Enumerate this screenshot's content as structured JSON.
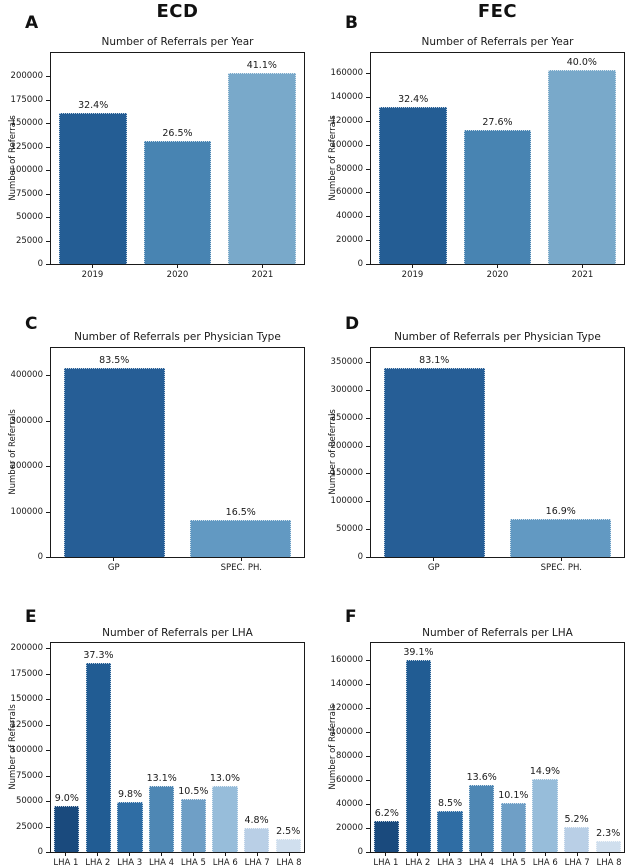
{
  "columns": [
    {
      "label": "ECD"
    },
    {
      "label": "FEC"
    }
  ],
  "chart_data": [
    {
      "panel": "A",
      "column": "ECD",
      "type": "bar",
      "title": "Number of Referrals per Year",
      "xlabel": "",
      "ylabel": "Number of Referrals",
      "categories": [
        "2019",
        "2020",
        "2021"
      ],
      "values": [
        161000,
        131500,
        204000
      ],
      "bar_labels": [
        "32.4%",
        "26.5%",
        "41.1%"
      ],
      "yticks": [
        0,
        25000,
        50000,
        75000,
        100000,
        125000,
        150000,
        175000,
        200000
      ],
      "ylim": [
        0,
        225000
      ],
      "colors": [
        "#245d94",
        "#4884b2",
        "#79a9ca"
      ],
      "grid": false,
      "legend": "none"
    },
    {
      "panel": "B",
      "column": "FEC",
      "type": "bar",
      "title": "Number of Referrals per Year",
      "xlabel": "",
      "ylabel": "Number of Referrals",
      "categories": [
        "2019",
        "2020",
        "2021"
      ],
      "values": [
        132000,
        112500,
        163000
      ],
      "bar_labels": [
        "32.4%",
        "27.6%",
        "40.0%"
      ],
      "yticks": [
        0,
        20000,
        40000,
        60000,
        80000,
        100000,
        120000,
        140000,
        160000
      ],
      "ylim": [
        0,
        177000
      ],
      "colors": [
        "#245d94",
        "#4884b2",
        "#79a9ca"
      ],
      "grid": false,
      "legend": "none"
    },
    {
      "panel": "C",
      "column": "ECD",
      "type": "bar",
      "title": "Number of Referrals per Physician Type",
      "xlabel": "",
      "ylabel": "Number of Referrals",
      "categories": [
        "GP",
        "SPEC. PH."
      ],
      "values": [
        415000,
        82000
      ],
      "bar_labels": [
        "83.5%",
        "16.5%"
      ],
      "yticks": [
        0,
        100000,
        200000,
        300000,
        400000
      ],
      "ylim": [
        0,
        460000
      ],
      "colors": [
        "#265e96",
        "#6299c2"
      ],
      "grid": false,
      "legend": "none"
    },
    {
      "panel": "D",
      "column": "FEC",
      "type": "bar",
      "title": "Number of Referrals per Physician Type",
      "xlabel": "",
      "ylabel": "Number of Referrals",
      "categories": [
        "GP",
        "SPEC. PH."
      ],
      "values": [
        339000,
        69000
      ],
      "bar_labels": [
        "83.1%",
        "16.9%"
      ],
      "yticks": [
        0,
        50000,
        100000,
        150000,
        200000,
        250000,
        300000,
        350000
      ],
      "ylim": [
        0,
        375000
      ],
      "colors": [
        "#265e96",
        "#6299c2"
      ],
      "grid": false,
      "legend": "none"
    },
    {
      "panel": "E",
      "column": "ECD",
      "type": "bar",
      "title": "Number of Referrals per LHA",
      "xlabel": "",
      "ylabel": "Number of Referrals",
      "categories": [
        "LHA 1",
        "LHA 2",
        "LHA 3",
        "LHA 4",
        "LHA 5",
        "LHA 6",
        "LHA 7",
        "LHA 8"
      ],
      "values": [
        45000,
        185500,
        49000,
        65000,
        52000,
        64500,
        24000,
        12500
      ],
      "bar_labels": [
        "9.0%",
        "37.3%",
        "9.8%",
        "13.1%",
        "10.5%",
        "13.0%",
        "4.8%",
        "2.5%"
      ],
      "yticks": [
        0,
        25000,
        50000,
        75000,
        100000,
        125000,
        150000,
        175000,
        200000
      ],
      "ylim": [
        0,
        205000
      ],
      "colors": [
        "#1a4a7d",
        "#215c93",
        "#2f6da4",
        "#4e87b4",
        "#6f9fc6",
        "#97bdda",
        "#b9cfe6",
        "#d0dfee"
      ],
      "grid": false,
      "legend": "none"
    },
    {
      "panel": "F",
      "column": "FEC",
      "type": "bar",
      "title": "Number of Referrals per LHA",
      "xlabel": "",
      "ylabel": "Number of Referrals",
      "categories": [
        "LHA 1",
        "LHA 2",
        "LHA 3",
        "LHA 4",
        "LHA 5",
        "LHA 6",
        "LHA 7",
        "LHA 8"
      ],
      "values": [
        25500,
        159500,
        34500,
        55500,
        41000,
        61000,
        21000,
        9500
      ],
      "bar_labels": [
        "6.2%",
        "39.1%",
        "8.5%",
        "13.6%",
        "10.1%",
        "14.9%",
        "5.2%",
        "2.3%"
      ],
      "yticks": [
        0,
        20000,
        40000,
        60000,
        80000,
        100000,
        120000,
        140000,
        160000
      ],
      "ylim": [
        0,
        174000
      ],
      "colors": [
        "#1a4a7d",
        "#215c93",
        "#2f6da4",
        "#4e87b4",
        "#6f9fc6",
        "#97bdda",
        "#b9cfe6",
        "#d0dfee"
      ],
      "grid": false,
      "legend": "none"
    }
  ]
}
